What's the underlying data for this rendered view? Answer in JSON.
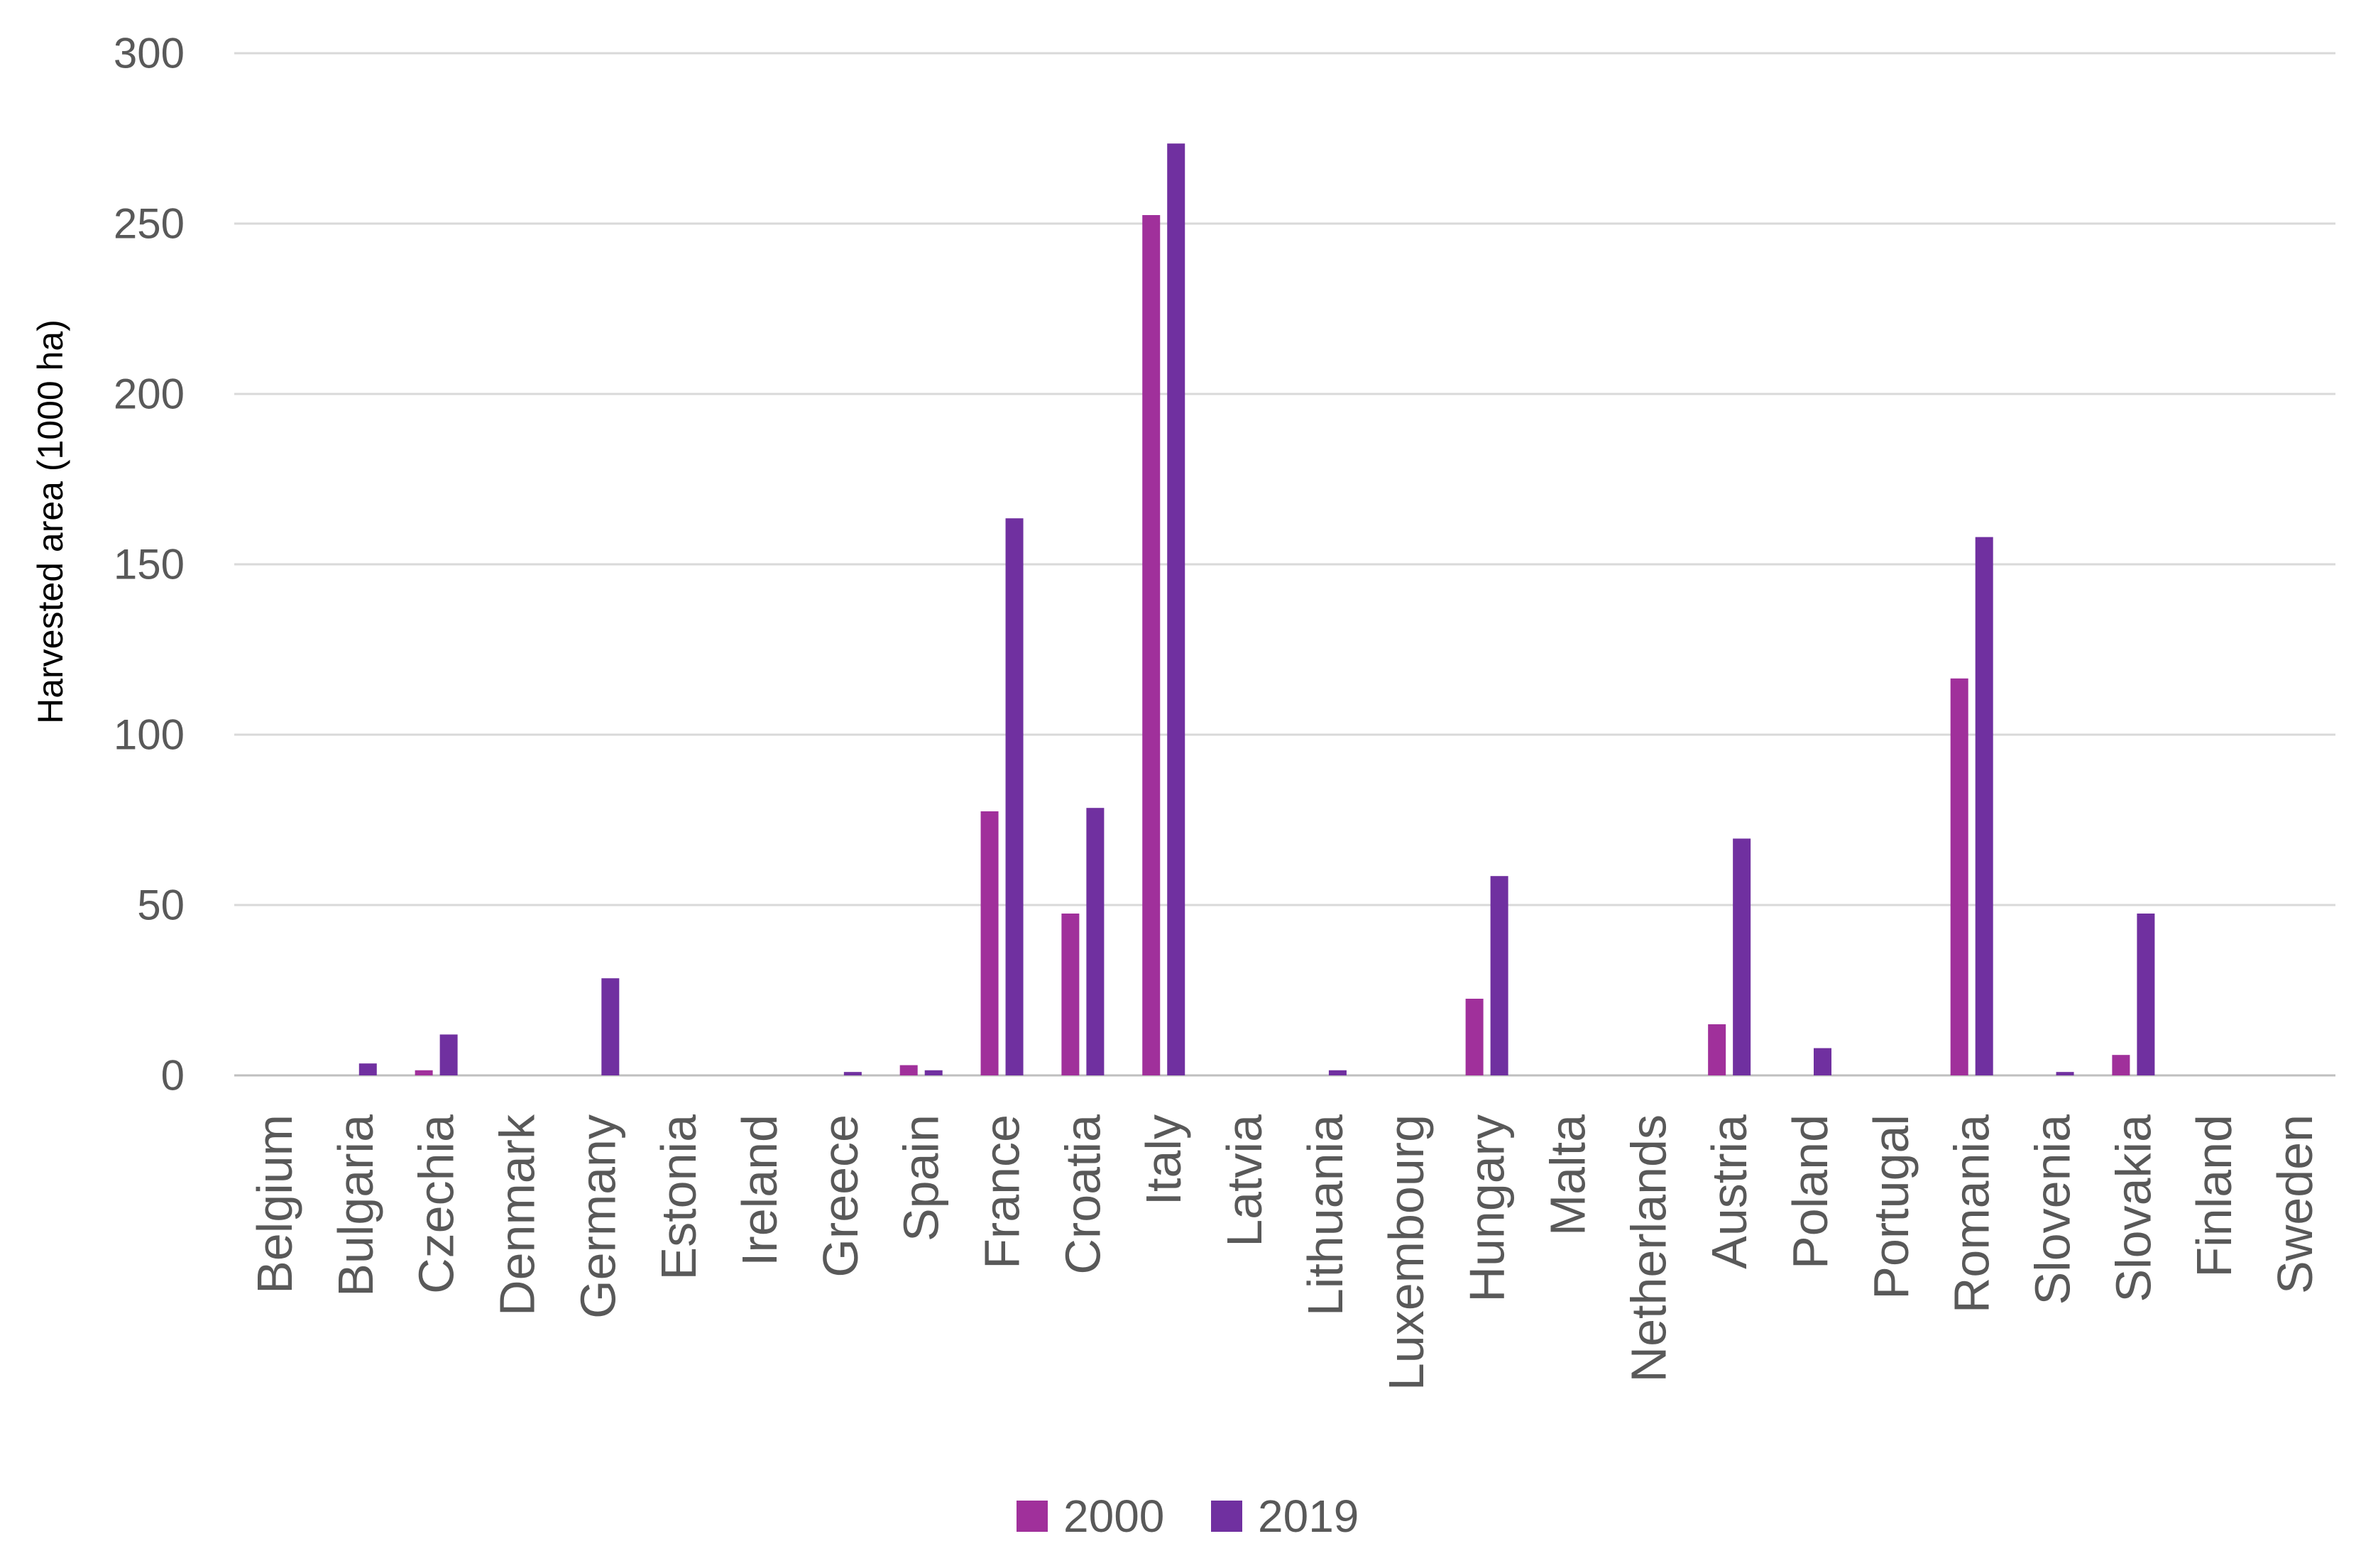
{
  "chart_data": {
    "type": "bar",
    "title": "",
    "xlabel": "",
    "ylabel": "Harvested area (1000 ha)",
    "ylim": [
      0,
      300
    ],
    "yticks": [
      0,
      50,
      100,
      150,
      200,
      250,
      300
    ],
    "grid": true,
    "legend": "bottom",
    "categories": [
      "Belgium",
      "Bulgaria",
      "Czechia",
      "Denmark",
      "Germany",
      "Estonia",
      "Ireland",
      "Greece",
      "Spain",
      "France",
      "Croatia",
      "Italy",
      "Latvia",
      "Lithuania",
      "Luxembourg",
      "Hungary",
      "Malta",
      "Netherlands",
      "Austria",
      "Poland",
      "Portugal",
      "Romania",
      "Slovenia",
      "Slovakia",
      "Finland",
      "Sweden"
    ],
    "series": [
      {
        "name": "2000",
        "color": "#A0309B",
        "values": [
          0,
          0,
          1.5,
          0,
          0,
          0,
          0,
          0,
          3,
          77.5,
          47.5,
          252.5,
          0,
          0,
          0,
          22.5,
          0,
          0,
          15,
          0,
          0,
          116.5,
          0,
          6,
          0,
          0
        ]
      },
      {
        "name": "2019",
        "color": "#7030A0",
        "values": [
          0,
          3.5,
          12,
          0,
          28.5,
          0,
          0,
          1,
          1.5,
          163.5,
          78.5,
          273.5,
          0,
          1.5,
          0,
          58.5,
          0,
          0,
          69.5,
          8,
          0,
          158,
          1,
          47.5,
          0,
          0
        ]
      }
    ]
  }
}
